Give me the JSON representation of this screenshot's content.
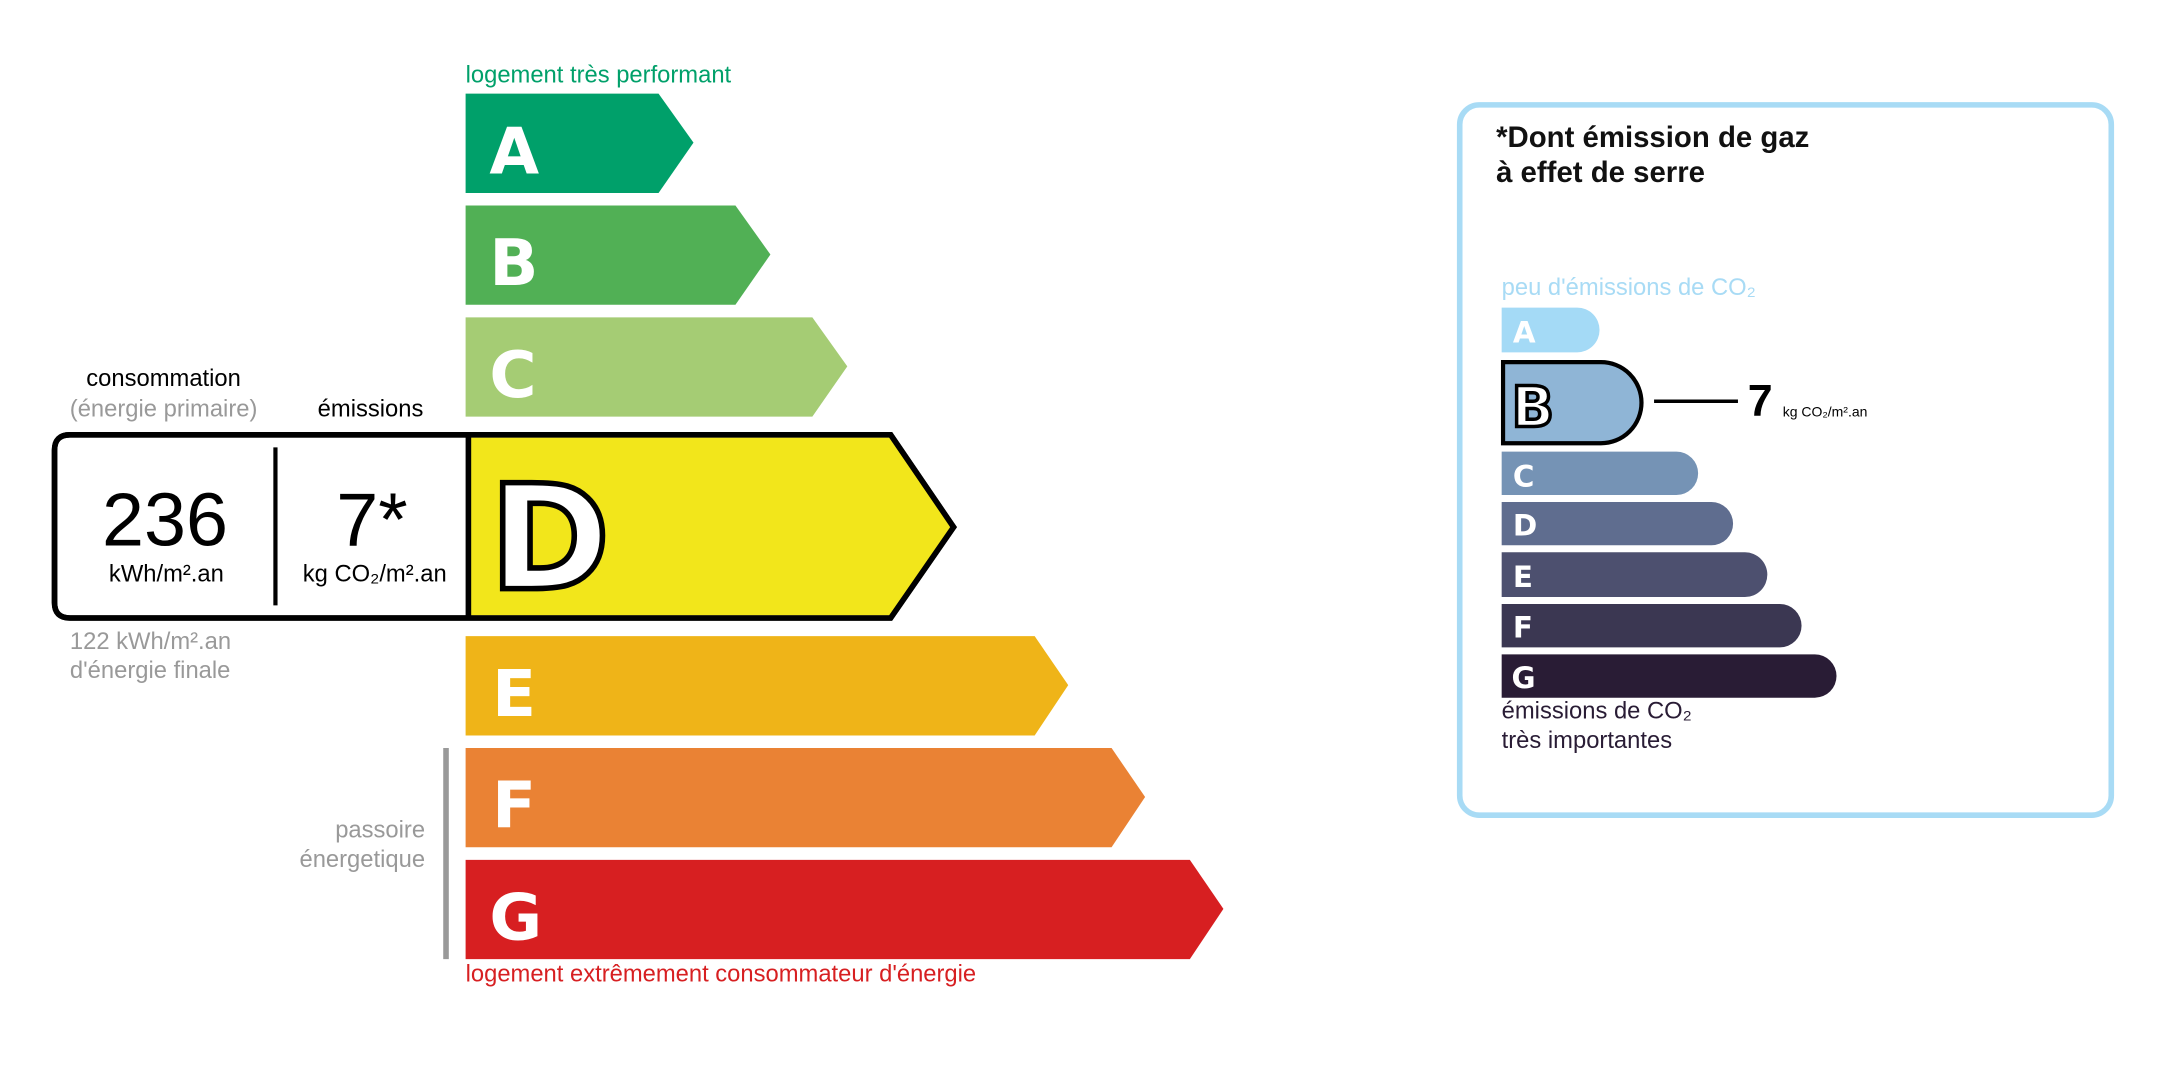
{
  "energy": {
    "top_label": "logement très performant",
    "bottom_label": "logement extrêmement consommateur d'énergie",
    "consumption_label": "consommation",
    "consumption_sub": "(énergie primaire)",
    "emissions_label": "émissions",
    "consumption_value": "236",
    "consumption_unit": "kWh/m².an",
    "emissions_value": "7*",
    "emissions_unit": "kg CO₂/m².an",
    "final_energy_line1": "122 kWh/m².an",
    "final_energy_line2": "d'énergie finale",
    "passoire_line1": "passoire",
    "passoire_line2": "énergetique",
    "current_class": "D",
    "top_label_color": "#00a06a",
    "bottom_label_color": "#d71f21",
    "classes": [
      {
        "letter": "A",
        "color": "#00a06a"
      },
      {
        "letter": "B",
        "color": "#51b055"
      },
      {
        "letter": "C",
        "color": "#a5cc74"
      },
      {
        "letter": "D",
        "color": "#f2e61b"
      },
      {
        "letter": "E",
        "color": "#efb418"
      },
      {
        "letter": "F",
        "color": "#ea8234"
      },
      {
        "letter": "G",
        "color": "#d71f21"
      }
    ]
  },
  "ges": {
    "title_line1": "*Dont émission de gaz",
    "title_line2": "à effet de serre",
    "top_label": "peu d'émissions de CO₂",
    "bottom_line1": "émissions de CO₂",
    "bottom_line2": "très importantes",
    "current_class": "B",
    "value": "7",
    "unit": "kg CO₂/m².an",
    "border_color": "#a8dbf5",
    "classes": [
      {
        "letter": "A",
        "color": "#a4daf6"
      },
      {
        "letter": "B",
        "color": "#8fb5d6"
      },
      {
        "letter": "C",
        "color": "#7593b5"
      },
      {
        "letter": "D",
        "color": "#5f6d8f"
      },
      {
        "letter": "E",
        "color": "#4d506f"
      },
      {
        "letter": "F",
        "color": "#3b3752"
      },
      {
        "letter": "G",
        "color": "#291c35"
      }
    ]
  }
}
